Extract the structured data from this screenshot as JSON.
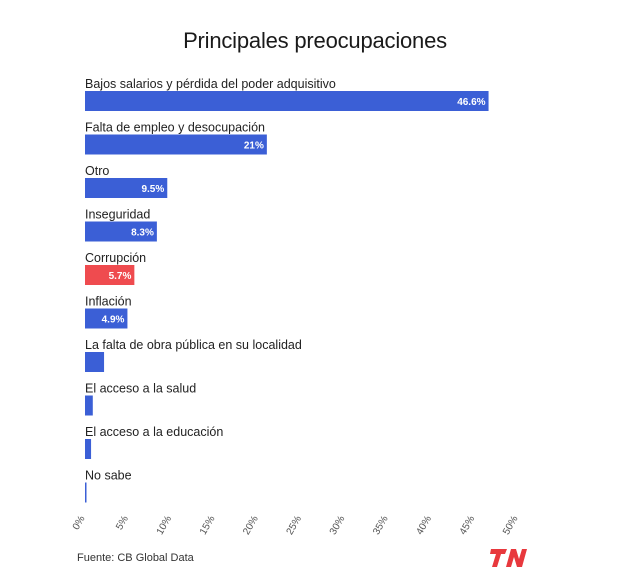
{
  "title": "Principales preocupaciones",
  "source": "Fuente: CB Global Data",
  "logo_text": "TN",
  "colors": {
    "bar": "#3b5fd6",
    "highlight": "#ef4b4f",
    "logo": "#e8383d"
  },
  "chart_data": {
    "type": "bar",
    "orientation": "horizontal",
    "title": "Principales preocupaciones",
    "categories": [
      "Bajos salarios y pérdida del poder adquisitivo",
      "Falta de empleo y desocupación",
      "Otro",
      "Inseguridad",
      "Corrupción",
      "Inflación",
      "La falta de obra pública en su localidad",
      "El acceso a la salud",
      "El acceso a la educación",
      "No sabe"
    ],
    "values": [
      46.6,
      21,
      9.5,
      8.3,
      5.7,
      4.9,
      2.2,
      0.9,
      0.7,
      0.1
    ],
    "value_labels": [
      "46.6%",
      "21%",
      "9.5%",
      "8.3%",
      "5.7%",
      "4.9%",
      "",
      "",
      "",
      ""
    ],
    "highlight_index": 4,
    "xlim": [
      0,
      50
    ],
    "xticks": [
      0,
      5,
      10,
      15,
      20,
      25,
      30,
      35,
      40,
      45,
      50
    ],
    "xtick_labels": [
      "0%",
      "5%",
      "10%",
      "15%",
      "20%",
      "25%",
      "30%",
      "35%",
      "40%",
      "45%",
      "50%"
    ],
    "xlabel": "",
    "ylabel": "",
    "grid": false
  }
}
